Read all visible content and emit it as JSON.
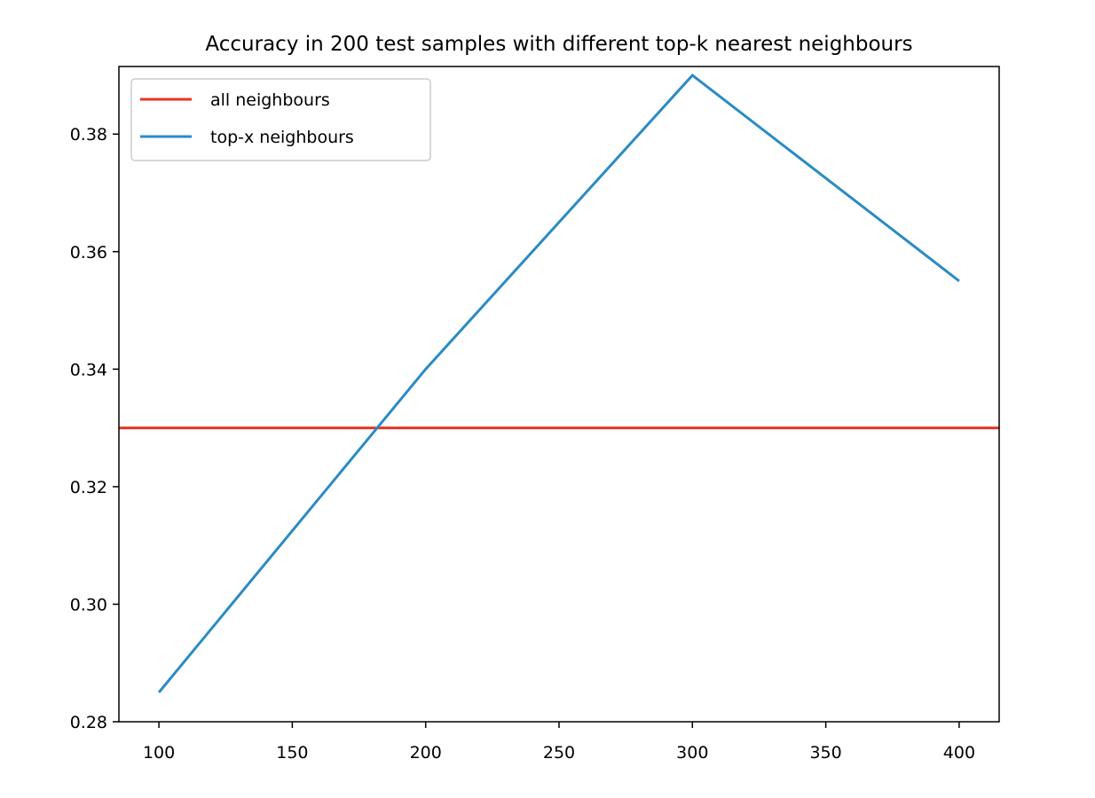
{
  "chart_data": {
    "type": "line",
    "title": "Accuracy in 200 test samples with different top-k nearest neighbours",
    "xlabel": "",
    "ylabel": "",
    "x": [
      100,
      200,
      300,
      400
    ],
    "xlim": [
      85,
      415
    ],
    "ylim": [
      0.28,
      0.3915
    ],
    "xticks": [
      100,
      150,
      200,
      250,
      300,
      350,
      400
    ],
    "xtick_labels": [
      "100",
      "150",
      "200",
      "250",
      "300",
      "350",
      "400"
    ],
    "yticks": [
      0.28,
      0.3,
      0.32,
      0.34,
      0.36,
      0.38
    ],
    "ytick_labels": [
      "0.28",
      "0.30",
      "0.32",
      "0.34",
      "0.36",
      "0.38"
    ],
    "series": [
      {
        "name": "all neighbours",
        "kind": "hline",
        "value": 0.33,
        "color": "#ee3124"
      },
      {
        "name": "top-x neighbours",
        "kind": "line",
        "values": [
          0.285,
          0.34,
          0.39,
          0.355
        ],
        "color": "#2a8bc4"
      }
    ],
    "grid": false,
    "legend_position": "upper-left"
  }
}
